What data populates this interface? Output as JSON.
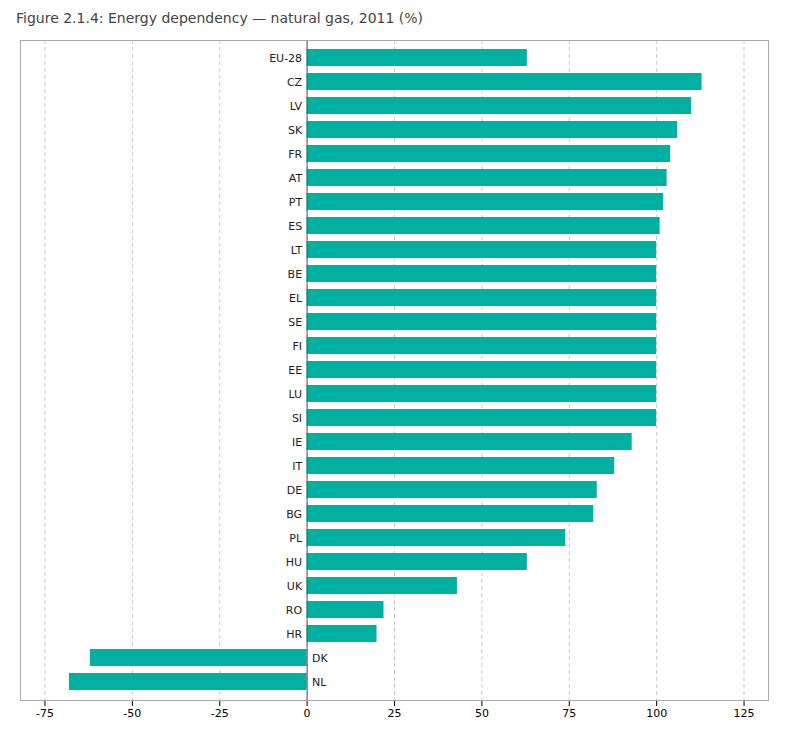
{
  "chart_data": {
    "type": "bar",
    "orientation": "horizontal",
    "title": "Figure 2.1.4: Energy dependency — natural gas, 2011 (%)",
    "categories": [
      "EU-28",
      "CZ",
      "LV",
      "SK",
      "FR",
      "AT",
      "PT",
      "ES",
      "LT",
      "BE",
      "EL",
      "SE",
      "FI",
      "EE",
      "LU",
      "SI",
      "IE",
      "IT",
      "DE",
      "BG",
      "PL",
      "HU",
      "UK",
      "RO",
      "HR",
      "DK",
      "NL"
    ],
    "values": [
      63,
      113,
      110,
      106,
      104,
      103,
      102,
      101,
      100,
      100,
      100,
      100,
      100,
      100,
      100,
      100,
      93,
      88,
      83,
      82,
      74,
      63,
      43,
      22,
      20,
      -62,
      -68
    ],
    "color": "#00b0a0",
    "xlim": [
      -82,
      132
    ],
    "xticks": [
      -75,
      -50,
      -25,
      0,
      25,
      50,
      75,
      100,
      125
    ],
    "grid": true
  }
}
